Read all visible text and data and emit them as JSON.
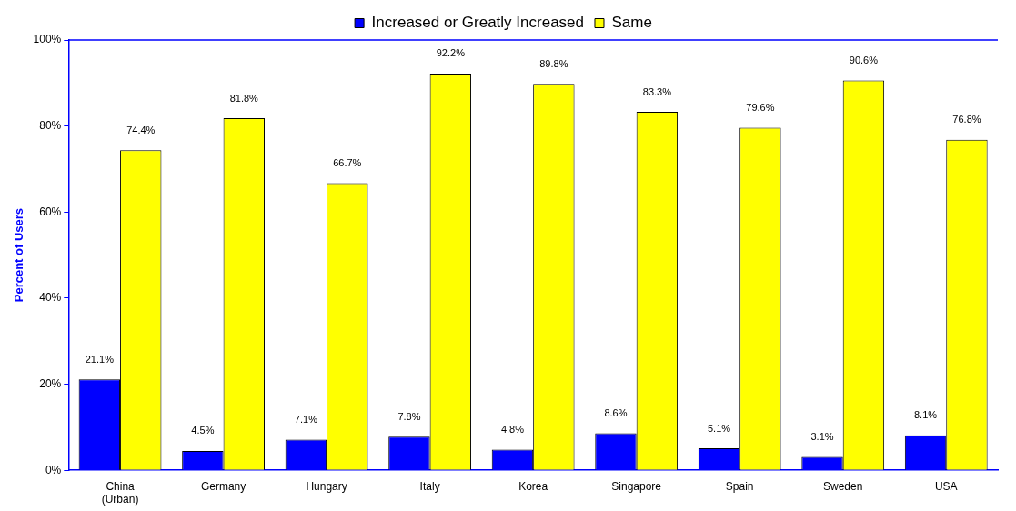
{
  "chart_data": {
    "type": "bar",
    "ylabel": "Percent of Users",
    "categories": [
      "China (Urban)",
      "Germany",
      "Hungary",
      "Italy",
      "Korea",
      "Singapore",
      "Spain",
      "Sweden",
      "USA"
    ],
    "series": [
      {
        "name": "Increased or Greatly Increased",
        "color": "#0000ff",
        "values": [
          21.1,
          4.5,
          7.1,
          7.8,
          4.8,
          8.6,
          5.1,
          3.1,
          8.1
        ],
        "value_labels": [
          "21.1%",
          "4.5%",
          "7.1%",
          "7.8%",
          "4.8%",
          "8.6%",
          "5.1%",
          "3.1%",
          "8.1%"
        ]
      },
      {
        "name": "Same",
        "color": "#ffff00",
        "values": [
          74.4,
          81.8,
          66.7,
          92.2,
          89.8,
          83.3,
          79.6,
          90.6,
          76.8
        ],
        "value_labels": [
          "74.4%",
          "81.8%",
          "66.7%",
          "92.2%",
          "89.8%",
          "83.3%",
          "79.6%",
          "90.6%",
          "76.8%"
        ]
      }
    ],
    "ylim": [
      0,
      100
    ],
    "yticks": [
      {
        "value": 0,
        "label": "0%"
      },
      {
        "value": 20,
        "label": "20%"
      },
      {
        "value": 40,
        "label": "40%"
      },
      {
        "value": 60,
        "label": "60%"
      },
      {
        "value": 80,
        "label": "80%"
      },
      {
        "value": 100,
        "label": "100%"
      }
    ],
    "grid": false,
    "legend": "top"
  }
}
